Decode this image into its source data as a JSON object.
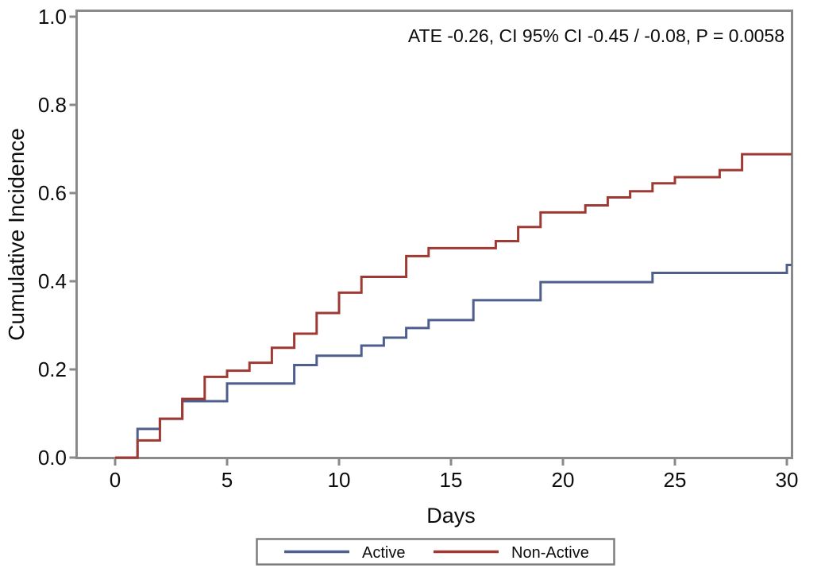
{
  "chart_data": {
    "type": "line",
    "line_style": "step-post",
    "title": "",
    "annotation": "ATE -0.26, CI 95% CI -0.45 / -0.08, P = 0.0058",
    "xlabel": "Days",
    "ylabel": "Cumulative Incidence",
    "xlim": [
      0,
      30
    ],
    "ylim": [
      0.0,
      1.0
    ],
    "xticks": [
      0,
      5,
      10,
      15,
      20,
      25,
      30
    ],
    "yticks": [
      "0.0",
      "0.2",
      "0.4",
      "0.6",
      "0.8",
      "1.0"
    ],
    "grid": false,
    "legend_position": "bottom-center-boxed",
    "series": [
      {
        "name": "Active",
        "color": "#4e5f8e",
        "points": [
          [
            0,
            0.0
          ],
          [
            1,
            0.065
          ],
          [
            2,
            0.088
          ],
          [
            3,
            0.128
          ],
          [
            5,
            0.168
          ],
          [
            8,
            0.21
          ],
          [
            9,
            0.231
          ],
          [
            11,
            0.254
          ],
          [
            12,
            0.272
          ],
          [
            13,
            0.294
          ],
          [
            14,
            0.312
          ],
          [
            16,
            0.357
          ],
          [
            19,
            0.398
          ],
          [
            24,
            0.419
          ],
          [
            30,
            0.437
          ]
        ]
      },
      {
        "name": "Non-Active",
        "color": "#9e3a33",
        "points": [
          [
            0,
            0.0
          ],
          [
            1,
            0.039
          ],
          [
            2,
            0.088
          ],
          [
            3,
            0.133
          ],
          [
            4,
            0.183
          ],
          [
            5,
            0.197
          ],
          [
            6,
            0.215
          ],
          [
            7,
            0.249
          ],
          [
            8,
            0.281
          ],
          [
            9,
            0.328
          ],
          [
            10,
            0.374
          ],
          [
            11,
            0.41
          ],
          [
            13,
            0.457
          ],
          [
            14,
            0.475
          ],
          [
            17,
            0.491
          ],
          [
            18,
            0.523
          ],
          [
            19,
            0.556
          ],
          [
            21,
            0.572
          ],
          [
            22,
            0.59
          ],
          [
            23,
            0.604
          ],
          [
            24,
            0.622
          ],
          [
            25,
            0.636
          ],
          [
            27,
            0.652
          ],
          [
            28,
            0.688
          ],
          [
            30,
            0.688
          ]
        ]
      }
    ]
  },
  "colors": {
    "frame": "#8a8a8a",
    "legend_border": "#7d7d7d",
    "text": "#0d0d0d",
    "background": "#ffffff",
    "active_line": "#4e5f8e",
    "non_active_line": "#9e3a33"
  }
}
